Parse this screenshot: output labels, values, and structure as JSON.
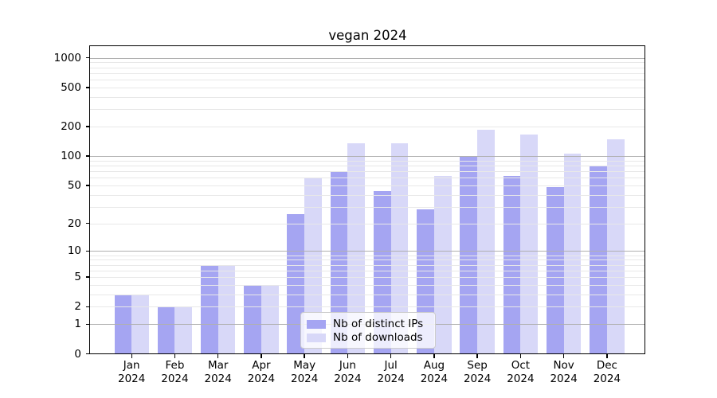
{
  "title": "vegan 2024",
  "chart_data": {
    "type": "bar",
    "title": "vegan 2024",
    "categories": [
      "Jan 2024",
      "Feb 2024",
      "Mar 2024",
      "Apr 2024",
      "May 2024",
      "Jun 2024",
      "Jul 2024",
      "Aug 2024",
      "Sep 2024",
      "Oct 2024",
      "Nov 2024",
      "Dec 2024"
    ],
    "series": [
      {
        "name": "Nb of distinct IPs",
        "color": "#a5a5f2",
        "values": [
          3,
          2,
          7,
          4,
          25,
          69,
          44,
          28,
          100,
          63,
          48,
          80
        ]
      },
      {
        "name": "Nb of downloads",
        "color": "#d8d8f8",
        "values": [
          3,
          2,
          7,
          4,
          60,
          136,
          136,
          63,
          187,
          167,
          106,
          150
        ]
      }
    ],
    "xlabel": "",
    "ylabel": "",
    "y_scale": "log10(1+v)",
    "y_ticks": [
      0,
      1,
      2,
      5,
      10,
      20,
      50,
      100,
      200,
      500,
      1000
    ],
    "ylim": [
      0,
      1316
    ],
    "grid": "major+minor horizontal, drawn above bars",
    "legend_position": "lower center"
  },
  "colors": {
    "background": "#ffffff",
    "ips_bar": "#a5a5f2",
    "downloads_bar": "#d8d8f8",
    "major_grid": "#b0b0b0",
    "minor_grid": "#e8e8e8",
    "axis": "#000000",
    "legend_border": "#cccccc"
  }
}
